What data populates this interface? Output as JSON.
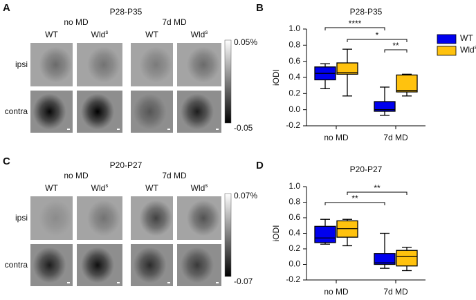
{
  "panels": [
    {
      "letter": "A",
      "title": "P28-P35",
      "groups": [
        "no MD",
        "7d MD"
      ],
      "columns": [
        "WT",
        "Wlds",
        "WT",
        "Wlds"
      ],
      "rows": [
        "ipsi",
        "contra"
      ],
      "scale_max": "0.05%",
      "scale_min": "-0.05"
    },
    {
      "letter": "C",
      "title": "P20-P27",
      "groups": [
        "no MD",
        "7d MD"
      ],
      "columns": [
        "WT",
        "Wlds",
        "WT",
        "Wlds"
      ],
      "rows": [
        "ipsi",
        "contra"
      ],
      "scale_max": "0.07%",
      "scale_min": "-0.07"
    }
  ],
  "chart_data": [
    {
      "type": "box",
      "letter": "B",
      "title": "P28-P35",
      "ylabel": "iODI",
      "categories": [
        "no MD",
        "7d MD"
      ],
      "series": [
        {
          "name": "WT",
          "color": "#0000ee",
          "min": [
            0.26,
            -0.07
          ],
          "q1": [
            0.37,
            -0.02
          ],
          "median": [
            0.45,
            0.0
          ],
          "q3": [
            0.53,
            0.1
          ],
          "max": [
            0.57,
            0.28
          ]
        },
        {
          "name": "Wlds",
          "color": "#ffc20e",
          "min": [
            0.17,
            0.17
          ],
          "q1": [
            0.44,
            0.22
          ],
          "median": [
            0.46,
            0.24
          ],
          "q3": [
            0.58,
            0.43
          ],
          "max": [
            0.75,
            0.44
          ]
        }
      ],
      "ylim": [
        -0.2,
        1.0
      ],
      "yticks": [
        {
          "value": 1,
          "label": "1.0"
        },
        0.8,
        0.6,
        0.4,
        0.2,
        {
          "value": 0,
          "label": "0.0"
        },
        -0.2
      ],
      "annotations": [
        "****",
        "*",
        "**"
      ],
      "legend": "upper right"
    },
    {
      "type": "box",
      "letter": "D",
      "title": "P20-P27",
      "ylabel": "iODI",
      "categories": [
        "no MD",
        "7d MD"
      ],
      "series": [
        {
          "color": "#0000ee",
          "min": [
            0.26,
            -0.05
          ],
          "q1": [
            0.28,
            0.0
          ],
          "median": [
            0.34,
            0.02
          ],
          "q3": [
            0.49,
            0.14
          ],
          "max": [
            0.58,
            0.4
          ]
        },
        {
          "color": "#ffc20e",
          "min": [
            0.24,
            -0.08
          ],
          "q1": [
            0.35,
            -0.02
          ],
          "median": [
            0.46,
            0.1
          ],
          "q3": [
            0.56,
            0.18
          ],
          "max": [
            0.58,
            0.22
          ]
        }
      ],
      "ylim": [
        -0.2,
        1.0
      ],
      "yticks": [
        {
          "value": 1,
          "label": "1.0"
        },
        0.8,
        0.6,
        0.4,
        0.2,
        {
          "value": 0,
          "label": "0.0"
        },
        -0.2
      ],
      "annotations": [
        "**",
        "**"
      ]
    }
  ]
}
